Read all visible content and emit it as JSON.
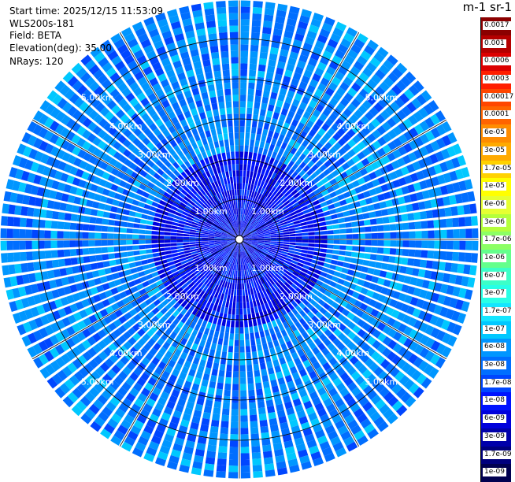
{
  "header": {
    "start_time": "Start time: 2025/12/15 11:53:09",
    "instrument": "WLS200s-181",
    "field": "Field: BETA",
    "elevation": "Elevation(deg): 35.00",
    "nrays": "NRays: 120"
  },
  "colorbar": {
    "title": "m-1 sr-1",
    "levels": [
      {
        "label": "0.0017",
        "color": "#8b0000"
      },
      {
        "label": "0.001",
        "color": "#b40000"
      },
      {
        "label": "0.0006",
        "color": "#dc0000"
      },
      {
        "label": "0.0003",
        "color": "#ff1e00"
      },
      {
        "label": "0.00017",
        "color": "#ff4600"
      },
      {
        "label": "0.0001",
        "color": "#ff6400"
      },
      {
        "label": "6e-05",
        "color": "#ff8c00"
      },
      {
        "label": "3e-05",
        "color": "#ffaa00"
      },
      {
        "label": "1.7e-05",
        "color": "#ffd200"
      },
      {
        "label": "1e-05",
        "color": "#ffff00"
      },
      {
        "label": "6e-06",
        "color": "#e6ff32"
      },
      {
        "label": "3e-06",
        "color": "#b4ff3c"
      },
      {
        "label": "1.7e-06",
        "color": "#8cff64"
      },
      {
        "label": "1e-06",
        "color": "#64ff8c"
      },
      {
        "label": "6e-07",
        "color": "#3cffc8"
      },
      {
        "label": "3e-07",
        "color": "#28ffe6"
      },
      {
        "label": "1.7e-07",
        "color": "#14e6ff"
      },
      {
        "label": "1e-07",
        "color": "#00c8ff"
      },
      {
        "label": "6e-08",
        "color": "#0096ff"
      },
      {
        "label": "3e-08",
        "color": "#006eff"
      },
      {
        "label": "1.7e-08",
        "color": "#0046ff"
      },
      {
        "label": "1e-08",
        "color": "#0014ff"
      },
      {
        "label": "6e-09",
        "color": "#0000dc"
      },
      {
        "label": "3e-09",
        "color": "#0000aa"
      },
      {
        "label": "1.7e-09",
        "color": "#00007d"
      },
      {
        "label": "1e-09",
        "color": "#000050"
      }
    ]
  },
  "chart_data": {
    "type": "heatmap",
    "projection": "polar (PPI)",
    "field": "BETA",
    "elevation_deg": 35.0,
    "nrays": 120,
    "range_rings_km": [
      1,
      2,
      3,
      4,
      5
    ],
    "range_labels": [
      "1.00km",
      "2.00km",
      "3.00km",
      "4.00km",
      "5.00km"
    ],
    "max_range_km": 5.95,
    "azimuth_lines_deg": [
      0,
      30,
      60,
      90,
      120,
      150,
      180,
      210,
      240,
      270,
      300,
      330
    ],
    "dominant_values": [
      "1e-07",
      "6e-08",
      "3e-08",
      "1.7e-08",
      "1e-08",
      "6e-09"
    ]
  }
}
